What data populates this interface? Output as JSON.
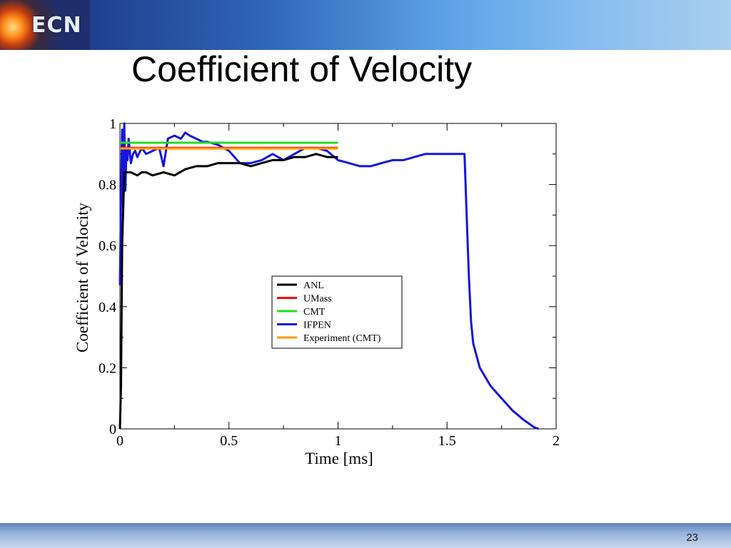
{
  "slide": {
    "logo_text": "ECN",
    "title": "Coefficient of Velocity",
    "page_number": "23"
  },
  "chart_data": {
    "type": "line",
    "xlabel": "Time [ms]",
    "ylabel": "Coefficient of Velocity",
    "xlim": [
      0,
      2
    ],
    "ylim": [
      0,
      1
    ],
    "x_ticks": [
      "0",
      "0.5",
      "1",
      "1.5",
      "2"
    ],
    "y_ticks": [
      "0",
      "0.2",
      "0.4",
      "0.6",
      "0.8",
      "1"
    ],
    "legend_position": "center",
    "series": [
      {
        "name": "ANL",
        "color": "#000000",
        "x": [
          0,
          0.005,
          0.01,
          0.02,
          0.05,
          0.08,
          0.1,
          0.12,
          0.15,
          0.2,
          0.25,
          0.3,
          0.35,
          0.4,
          0.45,
          0.5,
          0.55,
          0.6,
          0.65,
          0.7,
          0.75,
          0.8,
          0.85,
          0.9,
          0.95,
          1.0
        ],
        "y": [
          0,
          0.14,
          0.6,
          0.84,
          0.84,
          0.83,
          0.84,
          0.84,
          0.83,
          0.84,
          0.83,
          0.85,
          0.86,
          0.86,
          0.87,
          0.87,
          0.87,
          0.86,
          0.87,
          0.88,
          0.88,
          0.89,
          0.89,
          0.9,
          0.89,
          0.89
        ]
      },
      {
        "name": "UMass",
        "color": "#ff0000",
        "x": [
          0,
          1.0
        ],
        "y": [
          0.92,
          0.92
        ]
      },
      {
        "name": "CMT",
        "color": "#22dd22",
        "x": [
          0,
          1.0
        ],
        "y": [
          0.937,
          0.937
        ]
      },
      {
        "name": "IFPEN",
        "color": "#1515dd",
        "x": [
          0,
          0.005,
          0.01,
          0.015,
          0.02,
          0.025,
          0.03,
          0.035,
          0.04,
          0.05,
          0.06,
          0.07,
          0.08,
          0.1,
          0.12,
          0.15,
          0.18,
          0.2,
          0.22,
          0.25,
          0.28,
          0.3,
          0.32,
          0.35,
          0.38,
          0.4,
          0.45,
          0.5,
          0.55,
          0.6,
          0.65,
          0.7,
          0.75,
          0.8,
          0.85,
          0.9,
          0.95,
          1.0,
          1.05,
          1.1,
          1.15,
          1.2,
          1.25,
          1.3,
          1.35,
          1.4,
          1.45,
          1.5,
          1.55,
          1.58,
          1.59,
          1.6,
          1.61,
          1.62,
          1.65,
          1.7,
          1.75,
          1.8,
          1.85,
          1.9,
          1.92
        ],
        "y": [
          0.47,
          0.75,
          0.98,
          0.72,
          1.0,
          0.78,
          0.92,
          0.88,
          0.95,
          0.87,
          0.9,
          0.91,
          0.89,
          0.92,
          0.9,
          0.91,
          0.92,
          0.86,
          0.95,
          0.96,
          0.95,
          0.97,
          0.96,
          0.95,
          0.94,
          0.94,
          0.93,
          0.91,
          0.87,
          0.87,
          0.88,
          0.9,
          0.88,
          0.9,
          0.92,
          0.92,
          0.91,
          0.88,
          0.87,
          0.86,
          0.86,
          0.87,
          0.88,
          0.88,
          0.89,
          0.9,
          0.9,
          0.9,
          0.9,
          0.9,
          0.7,
          0.5,
          0.35,
          0.28,
          0.2,
          0.14,
          0.1,
          0.06,
          0.03,
          0.005,
          0
        ]
      },
      {
        "name": "Experiment (CMT)",
        "color": "#ff9900",
        "x": [
          0,
          1.0
        ],
        "y": [
          0.918,
          0.918
        ]
      }
    ]
  }
}
